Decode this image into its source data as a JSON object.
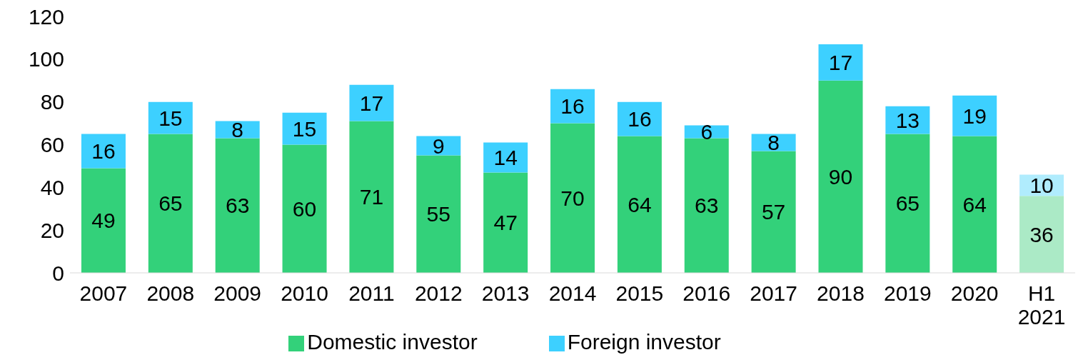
{
  "chart_data": {
    "type": "bar",
    "stacked": true,
    "categories": [
      "2007",
      "2008",
      "2009",
      "2010",
      "2011",
      "2012",
      "2013",
      "2014",
      "2015",
      "2016",
      "2017",
      "2018",
      "2019",
      "2020",
      "H1 2021"
    ],
    "series": [
      {
        "name": "Domestic investor",
        "color": "#33d17a",
        "colors": [
          "#33d17a",
          "#33d17a",
          "#33d17a",
          "#33d17a",
          "#33d17a",
          "#33d17a",
          "#33d17a",
          "#33d17a",
          "#33d17a",
          "#33d17a",
          "#33d17a",
          "#33d17a",
          "#33d17a",
          "#33d17a",
          "#abeac6"
        ],
        "values": [
          49,
          65,
          63,
          60,
          71,
          55,
          47,
          70,
          64,
          63,
          57,
          90,
          65,
          64,
          36
        ]
      },
      {
        "name": "Foreign investor",
        "color": "#3dd0ff",
        "colors": [
          "#3dd0ff",
          "#3dd0ff",
          "#3dd0ff",
          "#3dd0ff",
          "#3dd0ff",
          "#3dd0ff",
          "#3dd0ff",
          "#3dd0ff",
          "#3dd0ff",
          "#3dd0ff",
          "#3dd0ff",
          "#3dd0ff",
          "#3dd0ff",
          "#3dd0ff",
          "#b0ecfd"
        ],
        "values": [
          16,
          15,
          8,
          15,
          17,
          9,
          14,
          16,
          16,
          6,
          8,
          17,
          13,
          19,
          10
        ]
      }
    ],
    "ylim": [
      0,
      120
    ],
    "yticks": [
      0,
      20,
      40,
      60,
      80,
      100,
      120
    ],
    "data_labels": true,
    "legend": "bottom"
  }
}
